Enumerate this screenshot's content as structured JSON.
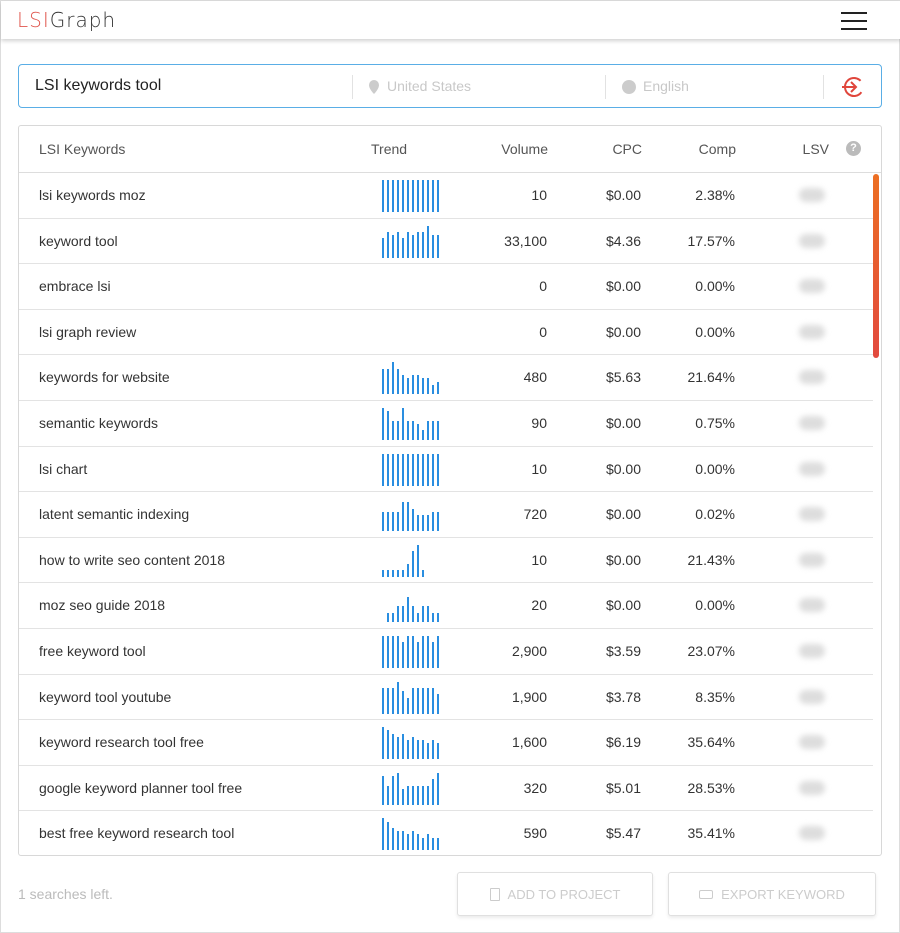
{
  "header": {
    "logo_a": "LSI",
    "logo_b": "Graph"
  },
  "search": {
    "query": "LSI keywords tool",
    "location_placeholder": "United States",
    "language_placeholder": "English"
  },
  "table": {
    "columns": [
      "LSI Keywords",
      "Trend",
      "Volume",
      "CPC",
      "Comp",
      "LSV"
    ],
    "rows": [
      {
        "keyword": "lsi keywords moz",
        "trend": [
          10,
          10,
          10,
          10,
          10,
          10,
          10,
          10,
          10,
          10,
          10,
          10
        ],
        "volume": "10",
        "cpc": "$0.00",
        "comp": "2.38%"
      },
      {
        "keyword": "keyword tool",
        "trend": [
          6,
          8,
          7,
          8,
          6,
          8,
          7,
          8,
          8,
          10,
          7,
          7
        ],
        "volume": "33,100",
        "cpc": "$4.36",
        "comp": "17.57%"
      },
      {
        "keyword": "embrace lsi",
        "trend": [],
        "volume": "0",
        "cpc": "$0.00",
        "comp": "0.00%"
      },
      {
        "keyword": "lsi graph review",
        "trend": [],
        "volume": "0",
        "cpc": "$0.00",
        "comp": "0.00%"
      },
      {
        "keyword": "keywords for website",
        "trend": [
          8,
          8,
          10,
          8,
          6,
          5,
          6,
          6,
          5,
          5,
          3,
          4
        ],
        "volume": "480",
        "cpc": "$5.63",
        "comp": "21.64%"
      },
      {
        "keyword": "semantic keywords",
        "trend": [
          10,
          9,
          6,
          6,
          10,
          6,
          6,
          5,
          3,
          6,
          6,
          6
        ],
        "volume": "90",
        "cpc": "$0.00",
        "comp": "0.75%"
      },
      {
        "keyword": "lsi chart",
        "trend": [
          10,
          10,
          10,
          10,
          10,
          10,
          10,
          10,
          10,
          10,
          10,
          10
        ],
        "volume": "10",
        "cpc": "$0.00",
        "comp": "0.00%"
      },
      {
        "keyword": "latent semantic indexing",
        "trend": [
          6,
          6,
          6,
          6,
          9,
          9,
          7,
          5,
          5,
          5,
          6,
          6
        ],
        "volume": "720",
        "cpc": "$0.00",
        "comp": "0.02%"
      },
      {
        "keyword": "how to write seo content 2018",
        "trend": [
          2,
          2,
          2,
          2,
          2,
          4,
          8,
          10,
          2,
          0,
          0,
          0
        ],
        "volume": "10",
        "cpc": "$0.00",
        "comp": "21.43%"
      },
      {
        "keyword": "moz seo guide 2018",
        "trend": [
          0,
          3,
          3,
          5,
          5,
          8,
          5,
          3,
          5,
          5,
          3,
          3
        ],
        "volume": "20",
        "cpc": "$0.00",
        "comp": "0.00%"
      },
      {
        "keyword": "free keyword tool",
        "trend": [
          10,
          10,
          10,
          10,
          8,
          10,
          10,
          8,
          10,
          10,
          8,
          10
        ],
        "volume": "2,900",
        "cpc": "$3.59",
        "comp": "23.07%"
      },
      {
        "keyword": "keyword tool youtube",
        "trend": [
          8,
          8,
          8,
          10,
          7,
          5,
          8,
          8,
          8,
          8,
          8,
          6
        ],
        "volume": "1,900",
        "cpc": "$3.78",
        "comp": "8.35%"
      },
      {
        "keyword": "keyword research tool free",
        "trend": [
          10,
          9,
          8,
          7,
          8,
          6,
          7,
          6,
          6,
          5,
          6,
          5
        ],
        "volume": "1,600",
        "cpc": "$6.19",
        "comp": "35.64%"
      },
      {
        "keyword": "google keyword planner tool free",
        "trend": [
          9,
          6,
          9,
          10,
          5,
          6,
          6,
          6,
          6,
          6,
          8,
          10
        ],
        "volume": "320",
        "cpc": "$5.01",
        "comp": "28.53%"
      },
      {
        "keyword": "best free keyword research tool",
        "trend": [
          10,
          9,
          7,
          6,
          6,
          5,
          6,
          5,
          4,
          5,
          4,
          4
        ],
        "volume": "590",
        "cpc": "$5.47",
        "comp": "35.41%"
      }
    ]
  },
  "footer": {
    "searches_left": "1 searches left.",
    "add_to_project": "ADD TO PROJECT",
    "export_keyword": "EXPORT KEYWORD"
  },
  "colors": {
    "accent": "#e0574f",
    "trend": "#2a8ee0",
    "search_border": "#5aaee6"
  }
}
